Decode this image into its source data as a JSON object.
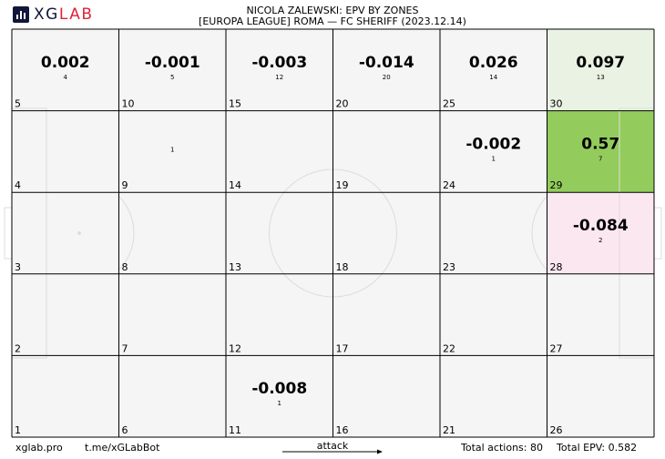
{
  "brand": {
    "name_part1": "XG",
    "name_part2": "LAB",
    "accent": "#e0223b",
    "dark": "#11163a"
  },
  "title": "NICOLA ZALEWSKI: EPV BY ZONES",
  "subtitle": "[EUROPA LEAGUE] ROMA —  FC SHERIFF (2023.12.14)",
  "footer": {
    "site": "xglab.pro",
    "bot": "t.me/xGLabBot",
    "direction": "attack",
    "total_actions": "Total actions: 80",
    "total_epv": "Total EPV: 0.582"
  },
  "colors": {
    "neutral": "#f5f5f5",
    "positive_light": "#eaf3e3",
    "positive_strong": "#93cc5c",
    "negative_light": "#fbe7f0",
    "grid": "#000000",
    "pitch_lines": "#dcdcdc"
  },
  "chart_data": {
    "type": "heatmap",
    "description": "EPV by pitch zone, 6 columns x 5 rows, zone ids numbered from bottom-left",
    "columns": 6,
    "rows": 5,
    "zones": [
      {
        "zone": 1,
        "epv": null,
        "actions": null
      },
      {
        "zone": 2,
        "epv": null,
        "actions": null
      },
      {
        "zone": 3,
        "epv": null,
        "actions": null
      },
      {
        "zone": 4,
        "epv": null,
        "actions": null
      },
      {
        "zone": 5,
        "epv": "0.002",
        "actions": 4
      },
      {
        "zone": 6,
        "epv": null,
        "actions": null
      },
      {
        "zone": 7,
        "epv": null,
        "actions": null
      },
      {
        "zone": 8,
        "epv": null,
        "actions": null
      },
      {
        "zone": 9,
        "epv": null,
        "actions": 1
      },
      {
        "zone": 10,
        "epv": "-0.001",
        "actions": 5
      },
      {
        "zone": 11,
        "epv": "-0.008",
        "actions": 1
      },
      {
        "zone": 12,
        "epv": null,
        "actions": null
      },
      {
        "zone": 13,
        "epv": null,
        "actions": null
      },
      {
        "zone": 14,
        "epv": null,
        "actions": null
      },
      {
        "zone": 15,
        "epv": "-0.003",
        "actions": 12
      },
      {
        "zone": 16,
        "epv": null,
        "actions": null
      },
      {
        "zone": 17,
        "epv": null,
        "actions": null
      },
      {
        "zone": 18,
        "epv": null,
        "actions": null
      },
      {
        "zone": 19,
        "epv": null,
        "actions": null
      },
      {
        "zone": 20,
        "epv": "-0.014",
        "actions": 20
      },
      {
        "zone": 21,
        "epv": null,
        "actions": null
      },
      {
        "zone": 22,
        "epv": null,
        "actions": null
      },
      {
        "zone": 23,
        "epv": null,
        "actions": null
      },
      {
        "zone": 24,
        "epv": "-0.002",
        "actions": 1
      },
      {
        "zone": 25,
        "epv": "0.026",
        "actions": 14
      },
      {
        "zone": 26,
        "epv": null,
        "actions": null
      },
      {
        "zone": 27,
        "epv": null,
        "actions": null
      },
      {
        "zone": 28,
        "epv": "-0.084",
        "actions": 2
      },
      {
        "zone": 29,
        "epv": "0.57",
        "actions": 7
      },
      {
        "zone": 30,
        "epv": "0.097",
        "actions": 13
      }
    ]
  }
}
